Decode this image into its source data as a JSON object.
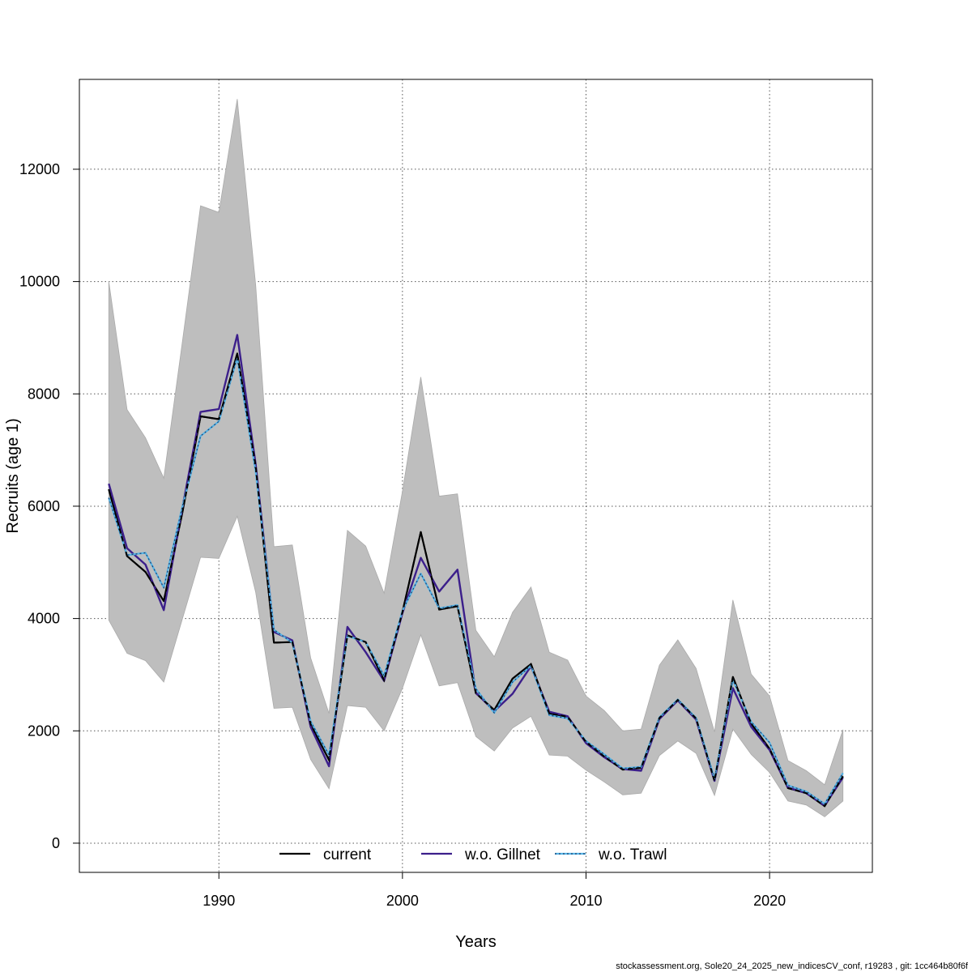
{
  "footer": "stockassessment.org, Sole20_24_2025_new_indicesCV_conf, r19283 , git: 1cc464b80f6f",
  "chart_data": {
    "type": "line",
    "title": "",
    "xlabel": "Years",
    "ylabel": "Recruits (age 1)",
    "xlim": [
      1982.4,
      2025.6
    ],
    "ylim": [
      -520,
      13600
    ],
    "xticks": [
      1990,
      2000,
      2010,
      2020
    ],
    "yticks": [
      0,
      2000,
      4000,
      6000,
      8000,
      10000,
      12000
    ],
    "grid": true,
    "x": [
      1984,
      1985,
      1986,
      1987,
      1988,
      1989,
      1990,
      1991,
      1992,
      1993,
      1994,
      1995,
      1996,
      1997,
      1998,
      1999,
      2000,
      2001,
      2002,
      2003,
      2004,
      2005,
      2006,
      2007,
      2008,
      2009,
      2010,
      2011,
      2012,
      2013,
      2014,
      2015,
      2016,
      2017,
      2018,
      2019,
      2020,
      2021,
      2022,
      2023,
      2024
    ],
    "band": {
      "name": "confidence interval",
      "color": "#bebebe",
      "upper": [
        10000,
        7720,
        7220,
        6500,
        8900,
        11350,
        11230,
        13250,
        9950,
        5280,
        5310,
        3300,
        2310,
        5570,
        5290,
        4450,
        6270,
        8300,
        6180,
        6220,
        3790,
        3320,
        4110,
        4560,
        3400,
        3260,
        2620,
        2360,
        2000,
        2030,
        3170,
        3620,
        3110,
        1980,
        4330,
        3010,
        2620,
        1470,
        1290,
        1040,
        2020
      ],
      "lower": [
        3970,
        3380,
        3250,
        2870,
        3980,
        5090,
        5070,
        5820,
        4470,
        2400,
        2420,
        1490,
        970,
        2450,
        2420,
        2000,
        2760,
        3710,
        2800,
        2860,
        1900,
        1640,
        2050,
        2260,
        1570,
        1550,
        1300,
        1090,
        860,
        890,
        1560,
        1820,
        1600,
        850,
        2030,
        1580,
        1260,
        750,
        680,
        470,
        750
      ]
    },
    "series": [
      {
        "name": "current",
        "color": "#000000",
        "style": "solid",
        "values": [
          6300,
          5110,
          4830,
          4310,
          5870,
          7600,
          7550,
          8720,
          6720,
          3570,
          3580,
          2120,
          1480,
          3700,
          3580,
          2900,
          4120,
          5540,
          4160,
          4220,
          2670,
          2370,
          2930,
          3190,
          2310,
          2250,
          1800,
          1540,
          1310,
          1340,
          2230,
          2550,
          2220,
          1110,
          2960,
          2130,
          1680,
          980,
          890,
          660,
          1190
        ]
      },
      {
        "name": "w.o. Gillnet",
        "color": "#3c1f8b",
        "style": "solid",
        "values": [
          6400,
          5250,
          4960,
          4150,
          5950,
          7680,
          7730,
          9050,
          6750,
          3760,
          3610,
          2070,
          1370,
          3850,
          3400,
          2890,
          4100,
          5080,
          4480,
          4870,
          2680,
          2350,
          2660,
          3150,
          2340,
          2260,
          1780,
          1530,
          1320,
          1290,
          2210,
          2540,
          2200,
          1110,
          2760,
          2070,
          1660,
          990,
          890,
          670,
          1170
        ]
      },
      {
        "name": "w.o. Trawl",
        "color": "#55b4e6",
        "style": "dotted",
        "values": [
          6150,
          5130,
          5170,
          4550,
          5980,
          7250,
          7510,
          8640,
          6620,
          3800,
          3570,
          2170,
          1570,
          3690,
          3580,
          2980,
          4140,
          4800,
          4180,
          4240,
          2750,
          2320,
          2870,
          3160,
          2280,
          2220,
          1820,
          1580,
          1330,
          1360,
          2240,
          2560,
          2230,
          1150,
          2910,
          2160,
          1790,
          1030,
          920,
          700,
          1250
        ]
      }
    ],
    "legend": {
      "position": "bottom-center",
      "entries": [
        "current",
        "w.o. Gillnet",
        "w.o. Trawl"
      ]
    }
  }
}
